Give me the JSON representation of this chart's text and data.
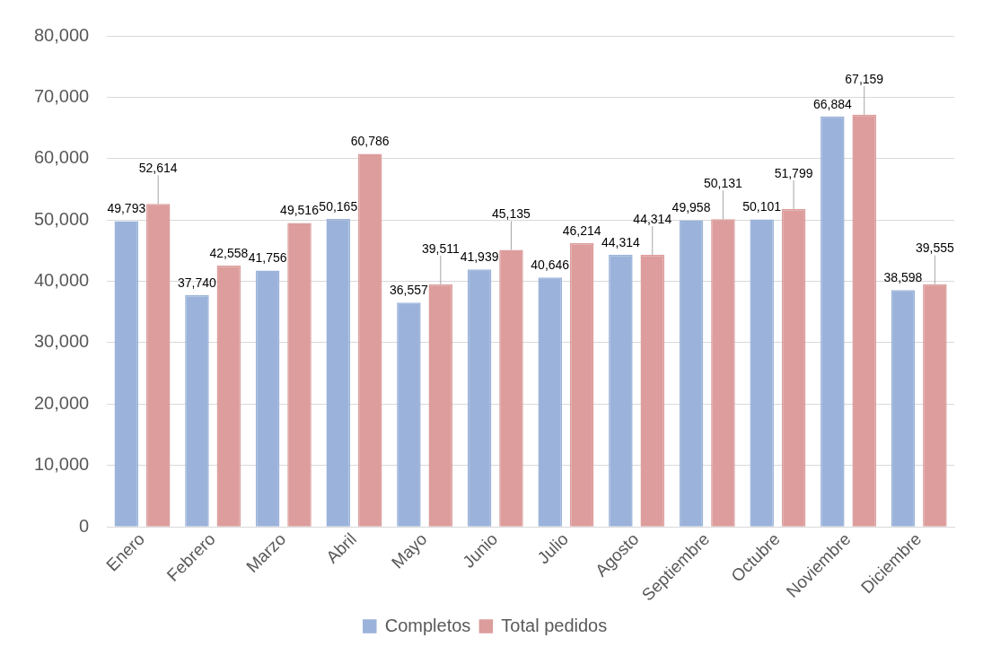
{
  "chart_data": {
    "type": "bar",
    "categories": [
      "Enero",
      "Febrero",
      "Marzo",
      "Abril",
      "Mayo",
      "Junio",
      "Julio",
      "Agosto",
      "Septiembre",
      "Octubre",
      "Noviembre",
      "Diciembre"
    ],
    "series": [
      {
        "name": "Completos",
        "color": "#9bb3da",
        "values": [
          49793,
          37740,
          41756,
          50165,
          36557,
          41939,
          40646,
          44314,
          49958,
          50101,
          66884,
          38598
        ],
        "value_labels": [
          "49,793",
          "37,740",
          "41,756",
          "50,165",
          "36,557",
          "41,939",
          "40,646",
          "44,314",
          "49,958",
          "50,101",
          "66,884",
          "38,598"
        ]
      },
      {
        "name": "Total pedidos",
        "color": "#dc9d9c",
        "values": [
          52614,
          42558,
          49516,
          60786,
          39511,
          45135,
          46214,
          44314,
          50131,
          51799,
          67159,
          39555
        ],
        "value_labels": [
          "52,614",
          "42,558",
          "49,516",
          "60,786",
          "39,511",
          "45,135",
          "46,214",
          "44,314",
          "50,131",
          "51,799",
          "67,159",
          "39,555"
        ]
      }
    ],
    "ylim": [
      0,
      80000
    ],
    "yticks": [
      {
        "value": 0,
        "label": "0"
      },
      {
        "value": 10000,
        "label": "10,000"
      },
      {
        "value": 20000,
        "label": "20,000"
      },
      {
        "value": 30000,
        "label": "30,000"
      },
      {
        "value": 40000,
        "label": "40,000"
      },
      {
        "value": 50000,
        "label": "50,000"
      },
      {
        "value": 60000,
        "label": "60,000"
      },
      {
        "value": 70000,
        "label": "70,000"
      },
      {
        "value": 80000,
        "label": "80,000"
      }
    ],
    "grid": "y",
    "legend": "bottom"
  }
}
